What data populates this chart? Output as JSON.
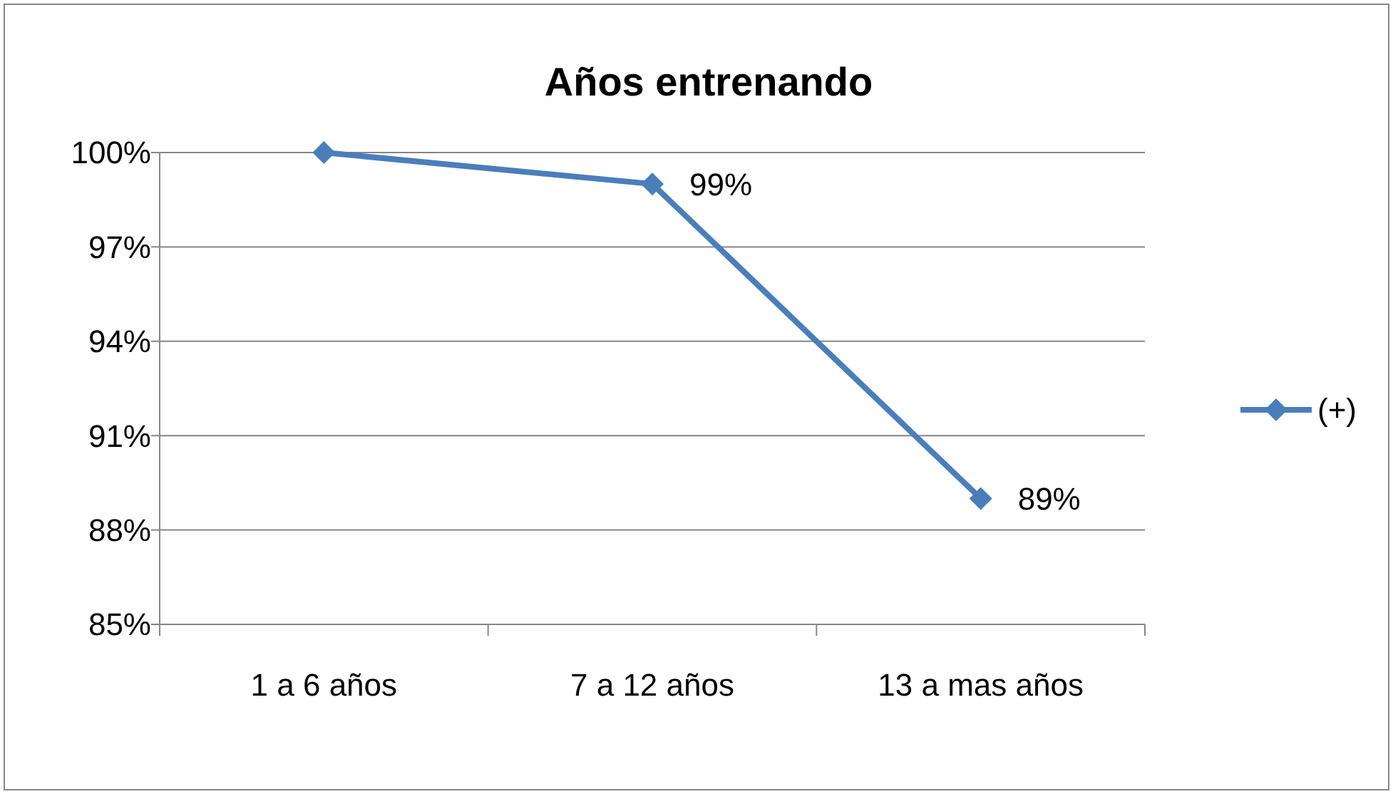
{
  "chart_data": {
    "type": "line",
    "title": "Años entrenando",
    "categories": [
      "1 a 6 años",
      "7 a 12 años",
      "13 a mas años"
    ],
    "series": [
      {
        "name": "(+)",
        "color": "#4a7ebb",
        "values": [
          100,
          99,
          89
        ],
        "value_labels": [
          null,
          "99%",
          "89%"
        ]
      }
    ],
    "ylim": [
      85,
      100
    ],
    "yticks": [
      {
        "value": 85,
        "label": "85%"
      },
      {
        "value": 88,
        "label": "88%"
      },
      {
        "value": 91,
        "label": "91%"
      },
      {
        "value": 94,
        "label": "94%"
      },
      {
        "value": 97,
        "label": "97%"
      },
      {
        "value": 100,
        "label": "100%"
      }
    ],
    "grid": "y",
    "legend": "right",
    "marker": "diamond",
    "line_style": "solid"
  }
}
